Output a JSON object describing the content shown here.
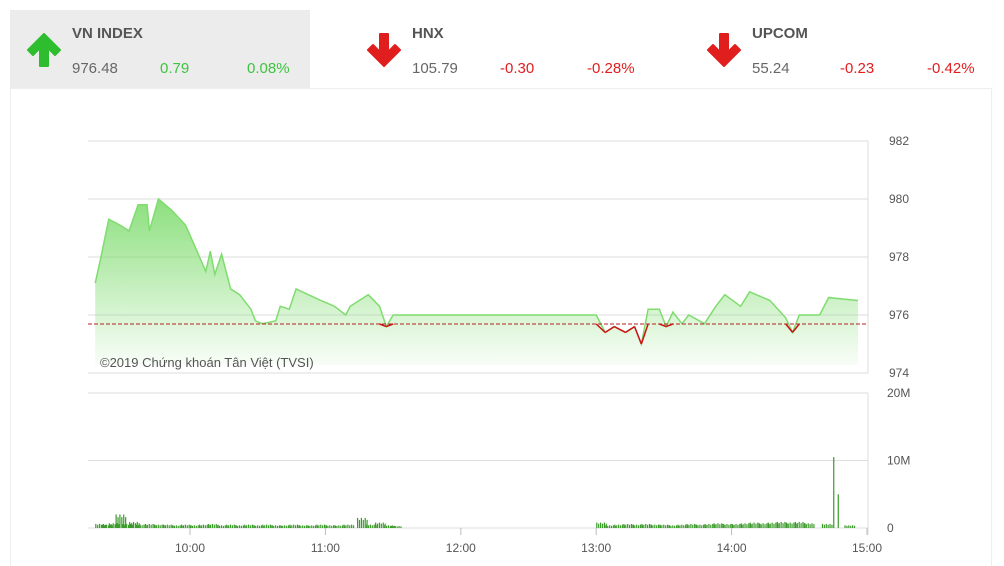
{
  "indices": [
    {
      "name": "VN INDEX",
      "value": "976.48",
      "change": "0.79",
      "percent": "0.08%",
      "direction": "up",
      "icon": "arrow-up-icon",
      "color": "#2ebd2e"
    },
    {
      "name": "HNX",
      "value": "105.79",
      "change": "-0.30",
      "percent": "-0.28%",
      "direction": "down",
      "icon": "arrow-down-icon",
      "color": "#e01e1e"
    },
    {
      "name": "UPCOM",
      "value": "55.24",
      "change": "-0.23",
      "percent": "-0.42%",
      "direction": "down",
      "icon": "arrow-down-icon",
      "color": "#e01e1e"
    }
  ],
  "chart_data": [
    {
      "type": "area",
      "watermark": "©2019 Chứng khoán Tân Việt (TVSI)",
      "reference_value": 975.69,
      "ylim": [
        974,
        982
      ],
      "yticks": [
        "974",
        "976",
        "978",
        "980",
        "982"
      ],
      "grid": true,
      "xticks": [
        "10:00",
        "11:00",
        "12:00",
        "13:00",
        "14:00",
        "15:00"
      ],
      "colors": {
        "above": "#7fdc6f",
        "below": "#cc1111",
        "reference": "#b22222"
      },
      "points": [
        [
          "09:18",
          977.1
        ],
        [
          "09:20",
          977.8
        ],
        [
          "09:24",
          979.3
        ],
        [
          "09:29",
          979.1
        ],
        [
          "09:33",
          978.9
        ],
        [
          "09:37",
          979.8
        ],
        [
          "09:41",
          979.8
        ],
        [
          "09:42",
          978.9
        ],
        [
          "09:46",
          980.0
        ],
        [
          "09:52",
          979.6
        ],
        [
          "09:58",
          979.1
        ],
        [
          "10:02",
          978.4
        ],
        [
          "10:07",
          977.5
        ],
        [
          "10:09",
          978.2
        ],
        [
          "10:11",
          977.4
        ],
        [
          "10:14",
          978.1
        ],
        [
          "10:18",
          976.9
        ],
        [
          "10:22",
          976.7
        ],
        [
          "10:27",
          976.2
        ],
        [
          "10:29",
          975.8
        ],
        [
          "10:32",
          975.7
        ],
        [
          "10:38",
          975.8
        ],
        [
          "10:40",
          976.3
        ],
        [
          "10:44",
          976.2
        ],
        [
          "10:47",
          976.9
        ],
        [
          "10:58",
          976.5
        ],
        [
          "11:04",
          976.3
        ],
        [
          "11:09",
          976.0
        ],
        [
          "11:11",
          976.3
        ],
        [
          "11:19",
          976.7
        ],
        [
          "11:24",
          976.3
        ],
        [
          "11:27",
          975.6
        ],
        [
          "11:30",
          976.0
        ],
        [
          "13:00",
          976.0
        ],
        [
          "13:04",
          975.4
        ],
        [
          "13:08",
          975.6
        ],
        [
          "13:13",
          975.4
        ],
        [
          "13:17",
          975.6
        ],
        [
          "13:20",
          975.0
        ],
        [
          "13:23",
          976.2
        ],
        [
          "13:28",
          976.2
        ],
        [
          "13:31",
          975.6
        ],
        [
          "13:34",
          976.1
        ],
        [
          "13:38",
          975.7
        ],
        [
          "13:41",
          976.0
        ],
        [
          "13:48",
          975.7
        ],
        [
          "13:53",
          976.3
        ],
        [
          "13:57",
          976.7
        ],
        [
          "14:04",
          976.3
        ],
        [
          "14:08",
          976.8
        ],
        [
          "14:17",
          976.5
        ],
        [
          "14:24",
          975.9
        ],
        [
          "14:27",
          975.4
        ],
        [
          "14:30",
          976.0
        ],
        [
          "14:39",
          976.0
        ],
        [
          "14:43",
          976.6
        ],
        [
          "14:56",
          976.5
        ]
      ]
    },
    {
      "type": "bar",
      "ylim": [
        0,
        20
      ],
      "yticks": [
        "0",
        "10M",
        "20M"
      ],
      "unit": "M",
      "color": "#3a9a2a",
      "points": [
        [
          "09:18",
          0.6
        ],
        [
          "09:21",
          0.5
        ],
        [
          "09:24",
          0.7
        ],
        [
          "09:27",
          2.0
        ],
        [
          "09:30",
          0.6
        ],
        [
          "09:33",
          0.9
        ],
        [
          "09:36",
          0.5
        ],
        [
          "09:40",
          0.6
        ],
        [
          "09:44",
          0.5
        ],
        [
          "09:48",
          0.5
        ],
        [
          "09:52",
          0.4
        ],
        [
          "09:56",
          0.5
        ],
        [
          "10:00",
          0.4
        ],
        [
          "10:04",
          0.5
        ],
        [
          "10:08",
          0.6
        ],
        [
          "10:12",
          0.4
        ],
        [
          "10:16",
          0.5
        ],
        [
          "10:20",
          0.4
        ],
        [
          "10:24",
          0.5
        ],
        [
          "10:28",
          0.4
        ],
        [
          "10:32",
          0.5
        ],
        [
          "10:36",
          0.4
        ],
        [
          "10:40",
          0.4
        ],
        [
          "10:44",
          0.5
        ],
        [
          "10:48",
          0.4
        ],
        [
          "10:52",
          0.4
        ],
        [
          "10:56",
          0.5
        ],
        [
          "11:00",
          0.4
        ],
        [
          "11:04",
          0.4
        ],
        [
          "11:08",
          0.5
        ],
        [
          "11:14",
          1.5
        ],
        [
          "11:18",
          0.5
        ],
        [
          "11:22",
          0.8
        ],
        [
          "11:26",
          0.4
        ],
        [
          "11:29",
          0.3
        ],
        [
          "13:00",
          0.8
        ],
        [
          "13:04",
          0.4
        ],
        [
          "13:08",
          0.5
        ],
        [
          "13:12",
          0.6
        ],
        [
          "13:16",
          0.5
        ],
        [
          "13:20",
          0.6
        ],
        [
          "13:24",
          0.5
        ],
        [
          "13:28",
          0.5
        ],
        [
          "13:32",
          0.4
        ],
        [
          "13:36",
          0.5
        ],
        [
          "13:40",
          0.6
        ],
        [
          "13:44",
          0.5
        ],
        [
          "13:48",
          0.6
        ],
        [
          "13:52",
          0.7
        ],
        [
          "13:56",
          0.6
        ],
        [
          "14:00",
          0.6
        ],
        [
          "14:04",
          0.7
        ],
        [
          "14:08",
          0.8
        ],
        [
          "14:12",
          0.7
        ],
        [
          "14:16",
          0.8
        ],
        [
          "14:20",
          0.9
        ],
        [
          "14:24",
          0.8
        ],
        [
          "14:28",
          0.9
        ],
        [
          "14:32",
          0.7
        ],
        [
          "14:40",
          0.6
        ],
        [
          "14:45",
          10.5
        ],
        [
          "14:47",
          5.0
        ],
        [
          "14:50",
          0.4
        ]
      ]
    }
  ]
}
